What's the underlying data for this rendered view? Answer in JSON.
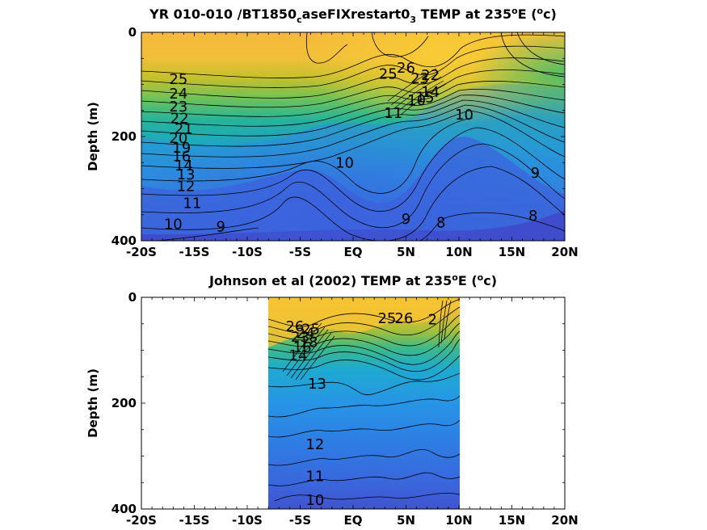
{
  "chart_data": [
    {
      "type": "heatmap",
      "subtype": "filled-contour",
      "title": "YR 010-010 /BT1850_caseFIXrestart0_3 TEMP at 235°E (°c)",
      "title_parts": {
        "a": "YR 010-010 /BT1850",
        "sub1": "c",
        "b": "aseFIXrestart0",
        "sub2": "3",
        "c": " TEMP at 235",
        "sup1": "o",
        "d": "E (",
        "sup2": "o",
        "e": "c)"
      },
      "ylabel": "Depth (m)",
      "xlabel": "",
      "xlim": [
        -20,
        20
      ],
      "ylim": [
        400,
        0
      ],
      "y_reversed": true,
      "xtick_values": [
        -20,
        -15,
        -10,
        -5,
        0,
        5,
        10,
        15,
        20
      ],
      "xtick_labels": [
        "-20S",
        "-15S",
        "-10S",
        "-5S",
        "EQ",
        "5N",
        "10N",
        "15N",
        "20N"
      ],
      "ytick_values": [
        0,
        200,
        400
      ],
      "ytick_labels": [
        "0",
        "200",
        "400"
      ],
      "data_extent_x": [
        -20,
        20
      ],
      "colormap": "parula",
      "contour_interval": 1,
      "contour_labels": [
        {
          "x": -16.5,
          "y": 90,
          "text": "25"
        },
        {
          "x": -16.5,
          "y": 118,
          "text": "24"
        },
        {
          "x": -16.5,
          "y": 143,
          "text": "23"
        },
        {
          "x": -16.4,
          "y": 165,
          "text": "22"
        },
        {
          "x": -16.0,
          "y": 185,
          "text": "21"
        },
        {
          "x": -16.5,
          "y": 203,
          "text": "20"
        },
        {
          "x": -16.2,
          "y": 222,
          "text": "19"
        },
        {
          "x": -16.2,
          "y": 238,
          "text": "16"
        },
        {
          "x": -16.0,
          "y": 256,
          "text": "14"
        },
        {
          "x": -15.8,
          "y": 273,
          "text": "13"
        },
        {
          "x": -15.8,
          "y": 295,
          "text": "12"
        },
        {
          "x": -15.2,
          "y": 328,
          "text": "11"
        },
        {
          "x": -17.0,
          "y": 368,
          "text": "10"
        },
        {
          "x": -12.5,
          "y": 373,
          "text": "9"
        },
        {
          "x": 5.0,
          "y": 68,
          "text": "26"
        },
        {
          "x": 3.3,
          "y": 80,
          "text": "25"
        },
        {
          "x": 6.3,
          "y": 88,
          "text": "23"
        },
        {
          "x": 7.3,
          "y": 82,
          "text": "22"
        },
        {
          "x": 6.0,
          "y": 130,
          "text": "10"
        },
        {
          "x": 6.8,
          "y": 125,
          "text": "15"
        },
        {
          "x": 7.3,
          "y": 115,
          "text": "14"
        },
        {
          "x": 3.8,
          "y": 155,
          "text": "11"
        },
        {
          "x": 10.5,
          "y": 158,
          "text": "10"
        },
        {
          "x": -0.8,
          "y": 250,
          "text": "10"
        },
        {
          "x": 17.2,
          "y": 270,
          "text": "9"
        },
        {
          "x": 5.0,
          "y": 358,
          "text": "9"
        },
        {
          "x": 8.3,
          "y": 365,
          "text": "8"
        },
        {
          "x": 17.0,
          "y": 352,
          "text": "8"
        }
      ]
    },
    {
      "type": "heatmap",
      "subtype": "filled-contour",
      "title": "Johnson et al (2002) TEMP at 235°E (°c)",
      "title_parts": {
        "a": "Johnson et al (2002) TEMP at 235",
        "sup1": "o",
        "b": "E (",
        "sup2": "o",
        "c": "c)"
      },
      "ylabel": "Depth (m)",
      "xlabel": "",
      "xlim": [
        -20,
        20
      ],
      "ylim": [
        400,
        0
      ],
      "y_reversed": true,
      "xtick_values": [
        -20,
        -15,
        -10,
        -5,
        0,
        5,
        10,
        15,
        20
      ],
      "xtick_labels": [
        "-20S",
        "-15S",
        "-10S",
        "-5S",
        "EQ",
        "5N",
        "10N",
        "15N",
        "20N"
      ],
      "ytick_values": [
        0,
        200,
        400
      ],
      "ytick_labels": [
        "0",
        "200",
        "400"
      ],
      "data_extent_x": [
        -8,
        10
      ],
      "colormap": "parula",
      "contour_interval": 1,
      "contour_labels": [
        {
          "x": -5.5,
          "y": 55,
          "text": "26"
        },
        {
          "x": -5.0,
          "y": 75,
          "text": "23"
        },
        {
          "x": -4.5,
          "y": 68,
          "text": "24"
        },
        {
          "x": -4.0,
          "y": 60,
          "text": "25"
        },
        {
          "x": -5.2,
          "y": 110,
          "text": "14"
        },
        {
          "x": -4.8,
          "y": 95,
          "text": "16"
        },
        {
          "x": -4.2,
          "y": 85,
          "text": "18"
        },
        {
          "x": 3.2,
          "y": 40,
          "text": "25"
        },
        {
          "x": 4.8,
          "y": 40,
          "text": "26"
        },
        {
          "x": 7.5,
          "y": 42,
          "text": "2"
        },
        {
          "x": -3.4,
          "y": 163,
          "text": "13"
        },
        {
          "x": -3.6,
          "y": 278,
          "text": "12"
        },
        {
          "x": -3.6,
          "y": 338,
          "text": "11"
        },
        {
          "x": -3.6,
          "y": 383,
          "text": "10"
        }
      ]
    }
  ]
}
